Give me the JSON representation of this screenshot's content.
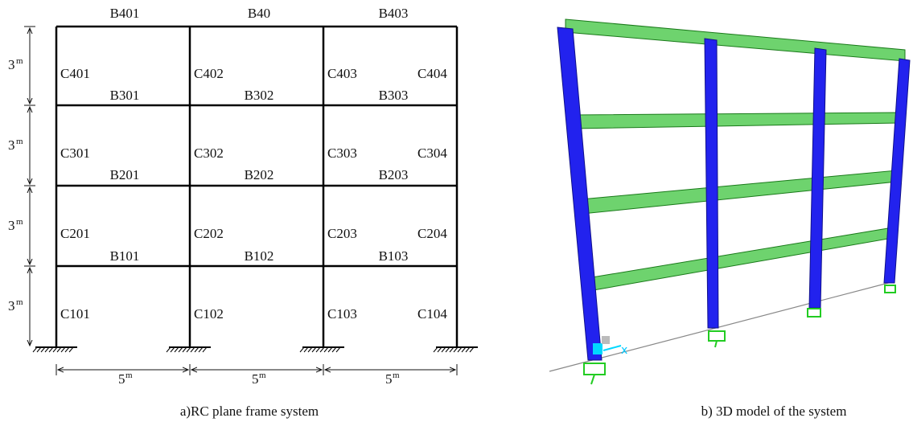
{
  "frame": {
    "beams": [
      [
        "B401",
        "B40",
        "B403"
      ],
      [
        "B301",
        "B302",
        "B303"
      ],
      [
        "B201",
        "B202",
        "B203"
      ],
      [
        "B101",
        "B102",
        "B103"
      ]
    ],
    "columns": [
      [
        "C401",
        "C402",
        "C403",
        "C404"
      ],
      [
        "C301",
        "C302",
        "C303",
        "C304"
      ],
      [
        "C201",
        "C202",
        "C203",
        "C204"
      ],
      [
        "C101",
        "C102",
        "C103",
        "C104"
      ]
    ],
    "height_dims": [
      {
        "number": "3",
        "unit": "m"
      },
      {
        "number": "3",
        "unit": "m"
      },
      {
        "number": "3",
        "unit": "m"
      },
      {
        "number": "3",
        "unit": "m"
      }
    ],
    "span_dims": [
      {
        "number": "5",
        "unit": "m"
      },
      {
        "number": "5",
        "unit": "m"
      },
      {
        "number": "5",
        "unit": "m"
      }
    ],
    "caption": "a)RC plane frame system"
  },
  "model": {
    "caption": "b) 3D model of the system"
  }
}
